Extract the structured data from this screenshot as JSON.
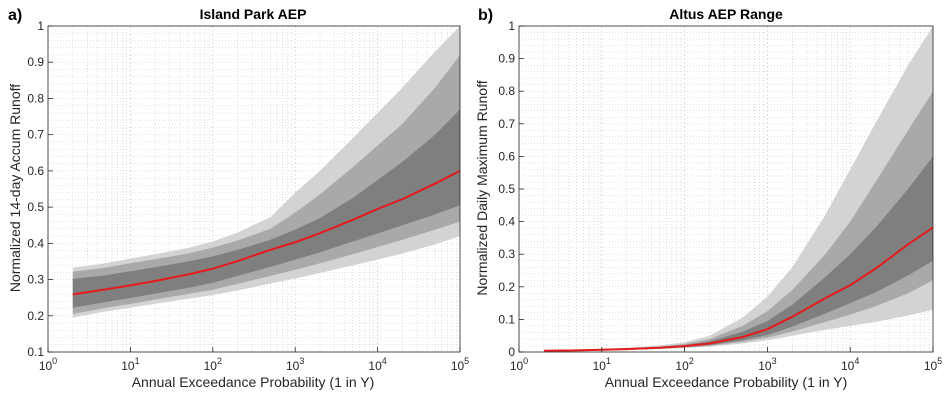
{
  "figure": {
    "colors": {
      "median": "#e41a1c",
      "band_outer": "#d3d3d3",
      "band_middle": "#a9a9a9",
      "band_inner": "#7f7f7f",
      "grid": "#c8c8c8"
    }
  },
  "chart_data": [
    {
      "type": "area",
      "panel_label": "a)",
      "title": "Island Park AEP",
      "xlabel": "Annual Exceedance Probability (1 in Y)",
      "ylabel": "Normalized 14-day Accum Runoff",
      "xscale": "log",
      "xlim": [
        1,
        100000
      ],
      "ylim": [
        0.1,
        1.0
      ],
      "grid": true,
      "x_tick_labels": [
        {
          "base": "10",
          "exp": "0"
        },
        {
          "base": "10",
          "exp": "1"
        },
        {
          "base": "10",
          "exp": "2"
        },
        {
          "base": "10",
          "exp": "3"
        },
        {
          "base": "10",
          "exp": "4"
        },
        {
          "base": "10",
          "exp": "5"
        }
      ],
      "y_ticks": [
        0.1,
        0.2,
        0.3,
        0.4,
        0.5,
        0.6,
        0.7,
        0.8,
        0.9,
        1
      ],
      "y_tick_labels": [
        "0.1",
        "0.2",
        "0.3",
        "0.4",
        "0.5",
        "0.6",
        "0.7",
        "0.8",
        "0.9",
        "1"
      ],
      "x": [
        2,
        5,
        10,
        20,
        50,
        100,
        200,
        500,
        1000,
        2000,
        5000,
        10000,
        20000,
        50000,
        100000
      ],
      "series": [
        {
          "band": "outer",
          "lower": [
            0.195,
            0.212,
            0.222,
            0.233,
            0.247,
            0.257,
            0.27,
            0.289,
            0.303,
            0.318,
            0.339,
            0.355,
            0.372,
            0.397,
            0.42
          ],
          "upper": [
            0.333,
            0.345,
            0.358,
            0.37,
            0.387,
            0.405,
            0.43,
            0.472,
            0.54,
            0.6,
            0.69,
            0.76,
            0.83,
            0.93,
            1.0
          ]
        },
        {
          "band": "middle",
          "lower": [
            0.205,
            0.222,
            0.233,
            0.245,
            0.26,
            0.272,
            0.288,
            0.31,
            0.327,
            0.345,
            0.37,
            0.39,
            0.41,
            0.438,
            0.46
          ],
          "upper": [
            0.322,
            0.333,
            0.345,
            0.356,
            0.372,
            0.388,
            0.408,
            0.44,
            0.485,
            0.535,
            0.61,
            0.67,
            0.73,
            0.83,
            0.92
          ]
        },
        {
          "band": "inner",
          "lower": [
            0.222,
            0.238,
            0.249,
            0.261,
            0.277,
            0.291,
            0.31,
            0.335,
            0.355,
            0.375,
            0.405,
            0.427,
            0.45,
            0.48,
            0.505
          ],
          "upper": [
            0.302,
            0.312,
            0.323,
            0.334,
            0.35,
            0.364,
            0.382,
            0.41,
            0.438,
            0.47,
            0.525,
            0.575,
            0.625,
            0.7,
            0.77
          ]
        },
        {
          "band": "median",
          "values": [
            0.259,
            0.273,
            0.284,
            0.296,
            0.314,
            0.33,
            0.351,
            0.382,
            0.403,
            0.428,
            0.465,
            0.495,
            0.522,
            0.565,
            0.6
          ]
        }
      ]
    },
    {
      "type": "area",
      "panel_label": "b)",
      "title": "Altus AEP Range",
      "xlabel": "Annual Exceedance Probability (1 in Y)",
      "ylabel": "Normalized Daily Maximum Runoff",
      "xscale": "log",
      "xlim": [
        1,
        100000
      ],
      "ylim": [
        0,
        1.0
      ],
      "grid": true,
      "x_tick_labels": [
        {
          "base": "10",
          "exp": "0"
        },
        {
          "base": "10",
          "exp": "1"
        },
        {
          "base": "10",
          "exp": "2"
        },
        {
          "base": "10",
          "exp": "3"
        },
        {
          "base": "10",
          "exp": "4"
        },
        {
          "base": "10",
          "exp": "5"
        }
      ],
      "y_ticks": [
        0,
        0.1,
        0.2,
        0.3,
        0.4,
        0.5,
        0.6,
        0.7,
        0.8,
        0.9,
        1
      ],
      "y_tick_labels": [
        "0",
        "0.1",
        "0.2",
        "0.3",
        "0.4",
        "0.5",
        "0.6",
        "0.7",
        "0.8",
        "0.9",
        "1"
      ],
      "x": [
        2,
        5,
        10,
        20,
        50,
        100,
        200,
        500,
        1000,
        2000,
        5000,
        10000,
        20000,
        50000,
        100000
      ],
      "series": [
        {
          "band": "outer",
          "lower": [
            0.002,
            0.003,
            0.004,
            0.006,
            0.009,
            0.012,
            0.016,
            0.026,
            0.036,
            0.05,
            0.068,
            0.08,
            0.092,
            0.112,
            0.13
          ],
          "upper": [
            0.006,
            0.008,
            0.01,
            0.013,
            0.02,
            0.03,
            0.05,
            0.105,
            0.17,
            0.26,
            0.42,
            0.56,
            0.7,
            0.88,
            1.0
          ]
        },
        {
          "band": "middle",
          "lower": [
            0.003,
            0.004,
            0.005,
            0.007,
            0.01,
            0.014,
            0.019,
            0.031,
            0.044,
            0.063,
            0.092,
            0.115,
            0.14,
            0.18,
            0.22
          ],
          "upper": [
            0.005,
            0.007,
            0.009,
            0.012,
            0.017,
            0.025,
            0.04,
            0.08,
            0.125,
            0.19,
            0.3,
            0.4,
            0.52,
            0.68,
            0.8
          ]
        },
        {
          "band": "inner",
          "lower": [
            0.003,
            0.004,
            0.005,
            0.008,
            0.011,
            0.015,
            0.021,
            0.036,
            0.052,
            0.078,
            0.118,
            0.15,
            0.182,
            0.235,
            0.28
          ],
          "upper": [
            0.005,
            0.006,
            0.008,
            0.011,
            0.015,
            0.021,
            0.033,
            0.062,
            0.095,
            0.145,
            0.23,
            0.3,
            0.38,
            0.5,
            0.6
          ]
        },
        {
          "band": "median",
          "values": [
            0.004,
            0.005,
            0.007,
            0.009,
            0.013,
            0.018,
            0.026,
            0.046,
            0.07,
            0.108,
            0.165,
            0.205,
            0.255,
            0.33,
            0.382
          ]
        }
      ]
    }
  ]
}
